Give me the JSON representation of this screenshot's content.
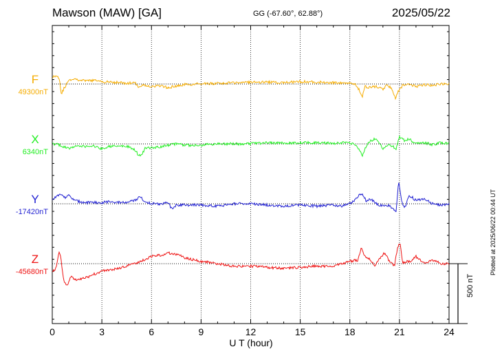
{
  "header": {
    "station": "Mawson (MAW)  [GA]",
    "coords": "GG (-67.60°,  62.88°)",
    "date": "2025/05/22"
  },
  "plotted_note": "Plotted at 2025/06/22 00:44 UT",
  "chart_data": {
    "type": "line",
    "xlabel": "U T (hour)",
    "xlim": [
      0,
      24
    ],
    "xticks": [
      0,
      3,
      6,
      9,
      12,
      15,
      18,
      21,
      24
    ],
    "xtick_labels": [
      "0",
      "3",
      "6",
      "9",
      "12",
      "15",
      "18",
      "21",
      "24"
    ],
    "grid": "vertical dotted every 3 h",
    "scale_bar": {
      "label": "500 nT",
      "value_nT": 500
    },
    "series": [
      {
        "name": "F",
        "baseline_label": "49300nT",
        "color": "#f5ac00",
        "x": [
          0,
          0.3,
          0.4,
          0.45,
          0.55,
          0.7,
          1.0,
          1.3,
          1.6,
          2.0,
          2.5,
          3.0,
          3.5,
          4.0,
          4.5,
          5.0,
          5.2,
          5.5,
          6.0,
          6.5,
          7.0,
          7.5,
          8.0,
          9.0,
          10.0,
          11.0,
          11.5,
          12.0,
          13.0,
          14.0,
          15.0,
          16.0,
          17.0,
          18.0,
          18.4,
          18.6,
          18.75,
          18.9,
          19.2,
          19.6,
          20.0,
          20.3,
          20.6,
          20.75,
          20.9,
          21.2,
          21.6,
          22.0,
          22.5,
          23.0,
          23.5,
          24.0
        ],
        "y": [
          60,
          70,
          55,
          20,
          -80,
          -40,
          30,
          45,
          35,
          25,
          30,
          20,
          15,
          15,
          5,
          10,
          -20,
          -10,
          -20,
          -15,
          -30,
          -20,
          -5,
          0,
          5,
          10,
          15,
          15,
          15,
          10,
          20,
          15,
          10,
          10,
          -10,
          -60,
          -110,
          -20,
          -30,
          -20,
          -40,
          -5,
          -60,
          -120,
          -70,
          -10,
          0,
          -20,
          -5,
          -10,
          0,
          5
        ]
      },
      {
        "name": "X",
        "baseline_label": "6340nT",
        "color": "#22ee22",
        "x": [
          0,
          0.3,
          0.6,
          1.0,
          1.5,
          2.0,
          2.5,
          3.0,
          3.5,
          4.0,
          4.5,
          5.0,
          5.2,
          5.4,
          5.6,
          6.0,
          6.5,
          7.0,
          7.5,
          8.0,
          9.0,
          10.0,
          11.0,
          12.0,
          13.0,
          14.0,
          15.0,
          16.0,
          17.0,
          18.0,
          18.4,
          18.6,
          18.75,
          18.9,
          19.2,
          19.6,
          20.0,
          20.3,
          20.6,
          20.8,
          21.0,
          21.3,
          21.6,
          22.0,
          22.5,
          23.0,
          23.5,
          24.0
        ],
        "y": [
          0,
          -5,
          -20,
          -40,
          -15,
          -20,
          -20,
          -40,
          -20,
          -20,
          -20,
          -50,
          -90,
          -100,
          -40,
          -30,
          -30,
          -10,
          0,
          -10,
          -10,
          0,
          0,
          0,
          10,
          5,
          10,
          10,
          5,
          10,
          -10,
          -50,
          -110,
          -40,
          20,
          50,
          -40,
          -10,
          -20,
          -40,
          60,
          30,
          40,
          0,
          10,
          -5,
          10,
          0
        ]
      },
      {
        "name": "Y",
        "baseline_label": "-17420nT",
        "color": "#1f1fd2",
        "x": [
          0,
          0.2,
          0.4,
          0.6,
          0.8,
          1.0,
          1.3,
          1.6,
          2.0,
          2.5,
          3.0,
          3.5,
          4.0,
          4.5,
          5.0,
          5.3,
          5.6,
          6.0,
          6.5,
          7.0,
          7.2,
          7.5,
          8.0,
          9.0,
          10.0,
          11.0,
          12.0,
          13.0,
          14.0,
          15.0,
          16.0,
          17.0,
          17.5,
          18.0,
          18.3,
          18.6,
          18.8,
          19.0,
          19.3,
          19.6,
          20.0,
          20.3,
          20.6,
          20.8,
          20.95,
          21.1,
          21.3,
          21.6,
          22.0,
          22.5,
          23.0,
          23.5,
          24.0
        ],
        "y": [
          30,
          60,
          70,
          80,
          50,
          70,
          30,
          20,
          10,
          10,
          10,
          20,
          10,
          10,
          30,
          60,
          20,
          0,
          0,
          10,
          -40,
          -10,
          -10,
          -10,
          -20,
          0,
          0,
          -10,
          -20,
          -10,
          -20,
          -10,
          -20,
          0,
          30,
          80,
          70,
          20,
          40,
          0,
          -20,
          -10,
          -40,
          -60,
          200,
          40,
          -40,
          70,
          30,
          40,
          0,
          -10,
          0
        ]
      },
      {
        "name": "Z",
        "baseline_label": "-45680nT",
        "color": "#ee1111",
        "x": [
          0,
          0.2,
          0.4,
          0.5,
          0.7,
          0.9,
          1.1,
          1.5,
          2.0,
          2.5,
          3.0,
          3.5,
          4.0,
          4.5,
          5.0,
          5.5,
          6.0,
          6.5,
          7.0,
          7.5,
          8.0,
          9.0,
          10.0,
          11.0,
          12.0,
          13.0,
          14.0,
          15.0,
          16.0,
          17.0,
          18.0,
          18.5,
          18.7,
          18.9,
          19.2,
          19.5,
          19.8,
          20.1,
          20.4,
          20.7,
          20.9,
          21.05,
          21.2,
          21.4,
          21.7,
          22.0,
          22.5,
          23.0,
          23.5,
          24.0
        ],
        "y": [
          -60,
          -50,
          100,
          60,
          -140,
          -180,
          -110,
          -140,
          -120,
          -90,
          -60,
          -50,
          -40,
          -20,
          0,
          30,
          60,
          70,
          90,
          80,
          50,
          20,
          0,
          -20,
          -20,
          -30,
          -40,
          -30,
          -20,
          -20,
          20,
          30,
          140,
          60,
          40,
          -20,
          40,
          90,
          20,
          -20,
          150,
          160,
          0,
          20,
          20,
          60,
          0,
          30,
          0,
          0
        ]
      }
    ]
  }
}
